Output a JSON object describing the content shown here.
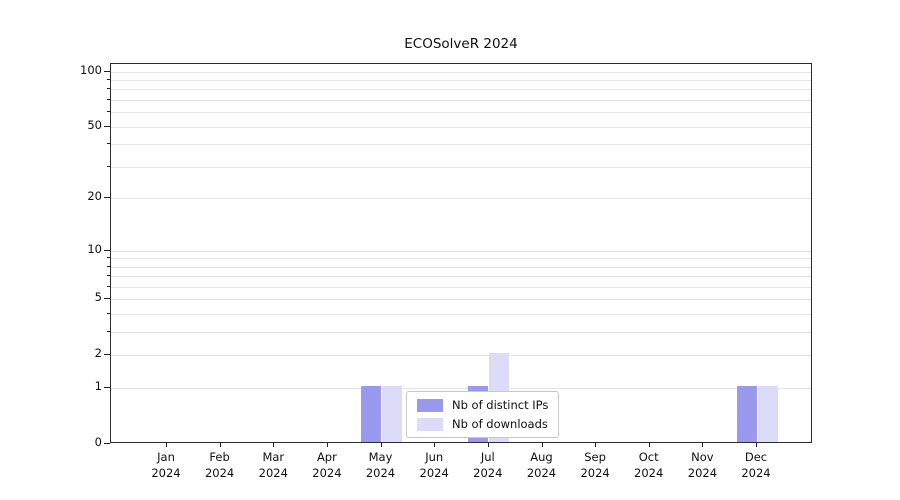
{
  "chart_data": {
    "type": "bar",
    "title": "ECOSolveR 2024",
    "categories": [
      "Jan",
      "Feb",
      "Mar",
      "Apr",
      "May",
      "Jun",
      "Jul",
      "Aug",
      "Sep",
      "Oct",
      "Nov",
      "Dec"
    ],
    "category_year": "2024",
    "series": [
      {
        "name": "Nb of distinct IPs",
        "color": "#9999ee",
        "values": [
          0,
          0,
          0,
          0,
          1,
          0,
          1,
          0,
          0,
          0,
          0,
          1
        ]
      },
      {
        "name": "Nb of downloads",
        "color": "#dcdcf8",
        "values": [
          0,
          0,
          0,
          0,
          1,
          0,
          2,
          0,
          0,
          0,
          0,
          1
        ]
      }
    ],
    "y_scale": "log1p",
    "y_ticks": [
      0,
      1,
      2,
      5,
      10,
      20,
      50,
      100
    ],
    "y_minor_gridlines": [
      1,
      2,
      3,
      4,
      5,
      6,
      7,
      8,
      9,
      10,
      20,
      30,
      40,
      50,
      60,
      70,
      80,
      90,
      100
    ],
    "ylim": [
      0,
      110
    ],
    "xlabel": "",
    "ylabel": "",
    "grid": "horizontal-minor",
    "legend_position": "bottom-center"
  }
}
